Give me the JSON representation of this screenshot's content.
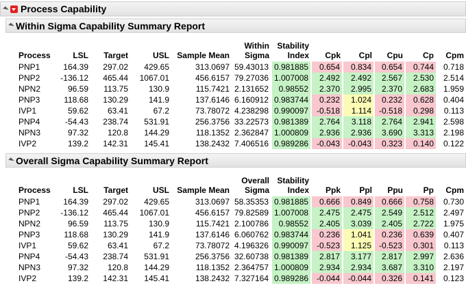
{
  "title": "Process Capability",
  "palette": {
    "green": "#c6f2c6",
    "red": "#f8c8ce",
    "yellow": "#fbfbb6"
  },
  "reports": [
    {
      "title": "Within Sigma Capability Summary Report",
      "columns": [
        "Process",
        "LSL",
        "Target",
        "USL",
        "Sample Mean",
        "Within Sigma",
        "Stability Index",
        "Cpk",
        "Cpl",
        "Cpu",
        "Cp",
        "Cpm"
      ],
      "rows": [
        [
          "PNP1",
          "164.39",
          "297.02",
          "429.65",
          "313.0697",
          "59.43013",
          "0.981885",
          "0.654",
          "0.834",
          "0.654",
          "0.744",
          "0.718"
        ],
        [
          "PNP2",
          "-136.12",
          "465.44",
          "1067.01",
          "456.6157",
          "79.27036",
          "1.007008",
          "2.492",
          "2.492",
          "2.567",
          "2.530",
          "2.514"
        ],
        [
          "NPN2",
          "96.59",
          "113.75",
          "130.9",
          "115.7421",
          "2.131652",
          "0.98552",
          "2.370",
          "2.995",
          "2.370",
          "2.683",
          "1.959"
        ],
        [
          "PNP3",
          "118.68",
          "130.29",
          "141.9",
          "137.6146",
          "6.160912",
          "0.983744",
          "0.232",
          "1.024",
          "0.232",
          "0.628",
          "0.404"
        ],
        [
          "IVP1",
          "59.62",
          "63.41",
          "67.2",
          "73.78072",
          "4.238298",
          "0.990097",
          "-0.518",
          "1.114",
          "-0.518",
          "0.298",
          "0.113"
        ],
        [
          "PNP4",
          "-54.43",
          "238.74",
          "531.91",
          "256.3756",
          "33.22573",
          "0.981389",
          "2.764",
          "3.118",
          "2.764",
          "2.941",
          "2.598"
        ],
        [
          "NPN3",
          "97.32",
          "120.8",
          "144.29",
          "118.1352",
          "2.362847",
          "1.000809",
          "2.936",
          "2.936",
          "3.690",
          "3.313",
          "2.198"
        ],
        [
          "IVP2",
          "139.2",
          "142.31",
          "145.41",
          "138.2432",
          "7.406516",
          "0.989286",
          "-0.043",
          "-0.043",
          "0.323",
          "0.140",
          "0.122"
        ]
      ],
      "fills": [
        [
          "green",
          "red",
          "red",
          "red",
          "red"
        ],
        [
          "green",
          "green",
          "green",
          "green",
          "green"
        ],
        [
          "green",
          "green",
          "green",
          "green",
          "green"
        ],
        [
          "green",
          "red",
          "yellow",
          "red",
          "red"
        ],
        [
          "green",
          "red",
          "yellow",
          "red",
          "red"
        ],
        [
          "green",
          "green",
          "green",
          "green",
          "green"
        ],
        [
          "green",
          "green",
          "green",
          "green",
          "green"
        ],
        [
          "green",
          "red",
          "red",
          "red",
          "red"
        ]
      ]
    },
    {
      "title": "Overall Sigma Capability Summary Report",
      "columns": [
        "Process",
        "LSL",
        "Target",
        "USL",
        "Sample Mean",
        "Overall Sigma",
        "Stability Index",
        "Ppk",
        "Ppl",
        "Ppu",
        "Pp",
        "Cpm"
      ],
      "rows": [
        [
          "PNP1",
          "164.39",
          "297.02",
          "429.65",
          "313.0697",
          "58.35353",
          "0.981885",
          "0.666",
          "0.849",
          "0.666",
          "0.758",
          "0.730"
        ],
        [
          "PNP2",
          "-136.12",
          "465.44",
          "1067.01",
          "456.6157",
          "79.82589",
          "1.007008",
          "2.475",
          "2.475",
          "2.549",
          "2.512",
          "2.497"
        ],
        [
          "NPN2",
          "96.59",
          "113.75",
          "130.9",
          "115.7421",
          "2.100786",
          "0.98552",
          "2.405",
          "3.039",
          "2.405",
          "2.722",
          "1.975"
        ],
        [
          "PNP3",
          "118.68",
          "130.29",
          "141.9",
          "137.6146",
          "6.060762",
          "0.983744",
          "0.236",
          "1.041",
          "0.236",
          "0.639",
          "0.407"
        ],
        [
          "IVP1",
          "59.62",
          "63.41",
          "67.2",
          "73.78072",
          "4.196326",
          "0.990097",
          "-0.523",
          "1.125",
          "-0.523",
          "0.301",
          "0.113"
        ],
        [
          "PNP4",
          "-54.43",
          "238.74",
          "531.91",
          "256.3756",
          "32.60738",
          "0.981389",
          "2.817",
          "3.177",
          "2.817",
          "2.997",
          "2.636"
        ],
        [
          "NPN3",
          "97.32",
          "120.8",
          "144.29",
          "118.1352",
          "2.364757",
          "1.000809",
          "2.934",
          "2.934",
          "3.687",
          "3.310",
          "2.197"
        ],
        [
          "IVP2",
          "139.2",
          "142.31",
          "145.41",
          "138.2432",
          "7.327164",
          "0.989286",
          "-0.044",
          "-0.044",
          "0.326",
          "0.141",
          "0.123"
        ]
      ],
      "fills": [
        [
          "green",
          "red",
          "red",
          "red",
          "red"
        ],
        [
          "green",
          "green",
          "green",
          "green",
          "green"
        ],
        [
          "green",
          "green",
          "green",
          "green",
          "green"
        ],
        [
          "green",
          "red",
          "yellow",
          "red",
          "red"
        ],
        [
          "green",
          "red",
          "yellow",
          "red",
          "red"
        ],
        [
          "green",
          "green",
          "green",
          "green",
          "green"
        ],
        [
          "green",
          "green",
          "green",
          "green",
          "green"
        ],
        [
          "green",
          "red",
          "red",
          "red",
          "red"
        ]
      ]
    }
  ]
}
